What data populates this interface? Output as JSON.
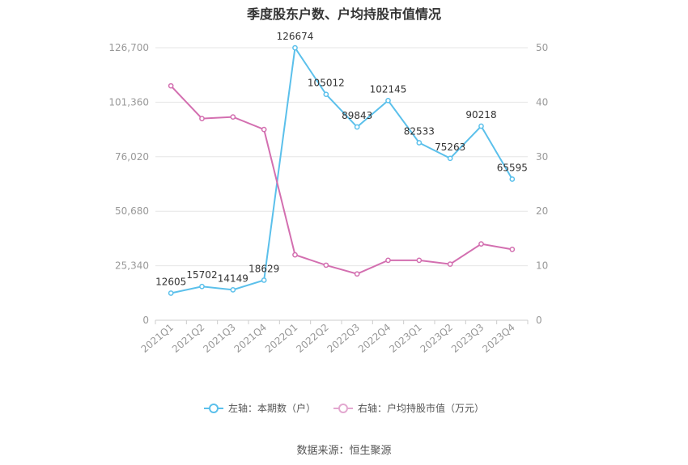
{
  "title": "季度股东户数、户均持股市值情况",
  "source": "数据来源：恒生聚源",
  "legend": {
    "left_label": "左轴：本期数（户）",
    "right_label": "右轴：户均持股市值（万元）"
  },
  "colors": {
    "left_series": "#5bc0eb",
    "right_series": "#d36fb0",
    "grid": "#e6e6e6",
    "axis_text": "#999999"
  },
  "chart_data": {
    "type": "line",
    "title": "季度股东户数、户均持股市值情况",
    "categories": [
      "2021Q1",
      "2021Q2",
      "2021Q3",
      "2021Q4",
      "2022Q1",
      "2022Q2",
      "2022Q3",
      "2022Q4",
      "2023Q1",
      "2023Q2",
      "2023Q3",
      "2023Q4"
    ],
    "left_axis": {
      "ylim": [
        0,
        126700
      ],
      "ticks": [
        0,
        25340,
        50680,
        76020,
        101360,
        126700
      ],
      "tick_labels": [
        "0",
        "25,340",
        "50,680",
        "76,020",
        "101,360",
        "126,700"
      ]
    },
    "right_axis": {
      "ylim": [
        0,
        50
      ],
      "ticks": [
        0,
        10,
        20,
        30,
        40,
        50
      ],
      "tick_labels": [
        "0",
        "10",
        "20",
        "30",
        "40",
        "50"
      ]
    },
    "grid": true,
    "legend_position": "bottom",
    "series": [
      {
        "name": "左轴：本期数（户）",
        "axis": "left",
        "values": [
          12605,
          15702,
          14149,
          18629,
          126674,
          105012,
          89843,
          102145,
          82533,
          75263,
          90218,
          65595
        ],
        "labels": [
          "12605",
          "15702",
          "14149",
          "18629",
          "126674",
          "105012",
          "89843",
          "102145",
          "82533",
          "75263",
          "90218",
          "65595"
        ]
      },
      {
        "name": "右轴：户均持股市值（万元）",
        "axis": "right",
        "values": [
          43.0,
          37.0,
          37.3,
          35.0,
          12.0,
          10.1,
          8.5,
          11.0,
          11.0,
          10.3,
          14.0,
          13.0
        ]
      }
    ]
  }
}
